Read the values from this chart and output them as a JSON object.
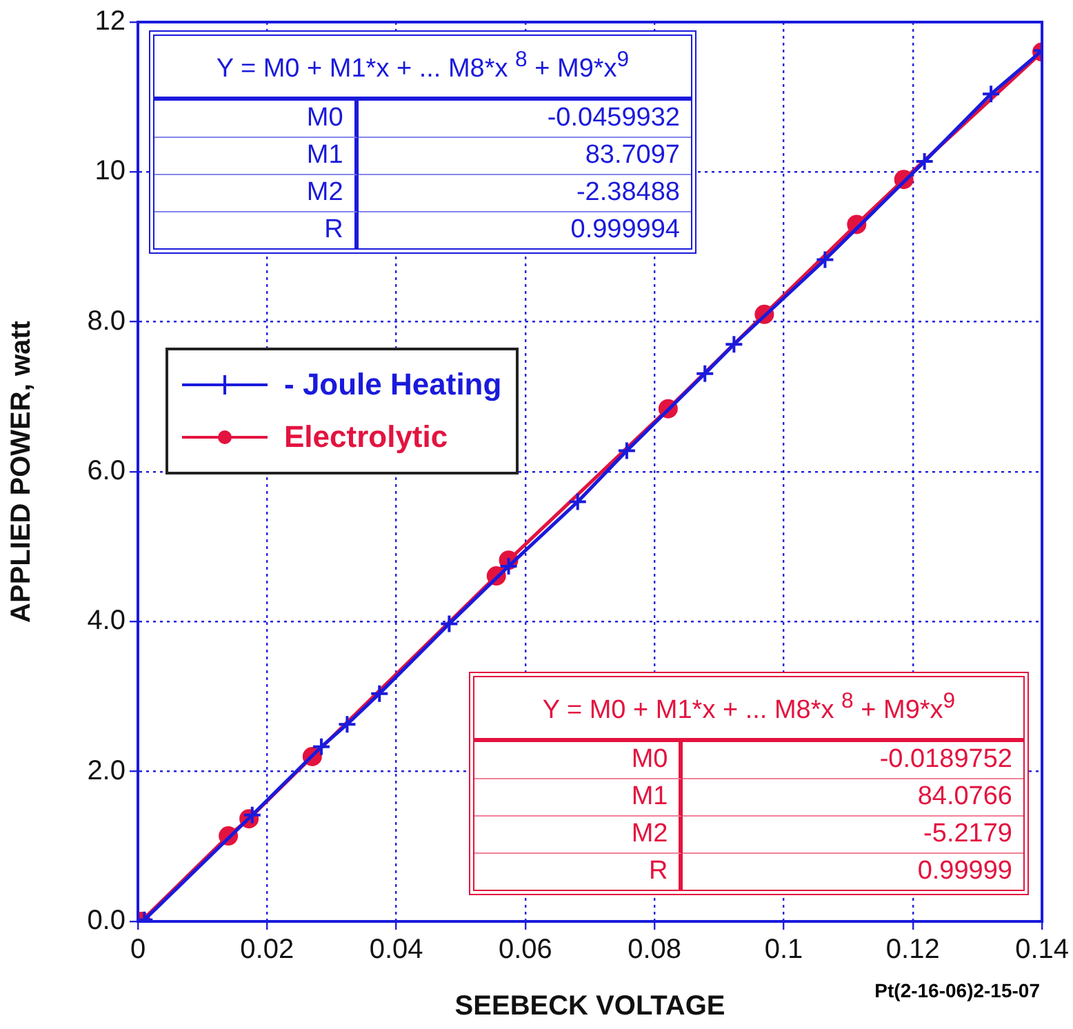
{
  "chart_data": {
    "type": "line",
    "xlabel": "SEEBECK VOLTAGE",
    "ylabel": "APPLIED POWER, watt",
    "xlim": [
      0,
      0.14
    ],
    "xticks": [
      0,
      0.02,
      0.04,
      0.06,
      0.08,
      0.1,
      0.12,
      0.14
    ],
    "ylim": [
      0,
      12
    ],
    "yticks": [
      {
        "value": 0,
        "label": "0.0"
      },
      {
        "value": 2,
        "label": "2.0"
      },
      {
        "value": 4,
        "label": "4.0"
      },
      {
        "value": 6,
        "label": "6.0"
      },
      {
        "value": 8,
        "label": "8.0"
      },
      {
        "value": 10,
        "label": "10"
      },
      12
    ],
    "grid": true,
    "legend": "top left",
    "line_style": "solid",
    "series": [
      {
        "name": "- Joule Heating",
        "color": "#1a1adc",
        "marker": "cross",
        "x": [
          0.001,
          0.0177,
          0.0284,
          0.0324,
          0.0374,
          0.0482,
          0.0574,
          0.0681,
          0.0757,
          0.0878,
          0.0923,
          0.1064,
          0.1218,
          0.1321,
          0.14
        ],
        "values": [
          0.02,
          1.42,
          2.33,
          2.63,
          3.04,
          3.97,
          4.74,
          5.6,
          6.28,
          7.31,
          7.7,
          8.83,
          10.14,
          11.04,
          11.62
        ]
      },
      {
        "name": "Electrolytic",
        "color": "#e3133f",
        "marker": "circle",
        "x": [
          0.0005,
          0.014,
          0.0172,
          0.027,
          0.0555,
          0.0574,
          0.0821,
          0.097,
          0.1113,
          0.1186,
          0.14
        ],
        "values": [
          0,
          1.14,
          1.37,
          2.2,
          4.61,
          4.82,
          6.84,
          8.1,
          9.3,
          9.9,
          11.6
        ]
      }
    ],
    "annotations": [
      "Y = M0 + M1*x + ... M8*x $^{8}$ + M9*x$^{9}$",
      "M0",
      "-0.0459932",
      "M1",
      "83.7097",
      "M2",
      "-2.38488",
      "R",
      "0.999994",
      "Y = M0 + M1*x + ... M8*x $^{8}$ + M9*x$^{9}$",
      "M0",
      "-0.0189752",
      "M1",
      "84.0766",
      "M2",
      "-5.2179",
      "R",
      "0.99999",
      "Pt(2-16-06)2-15-07"
    ]
  }
}
